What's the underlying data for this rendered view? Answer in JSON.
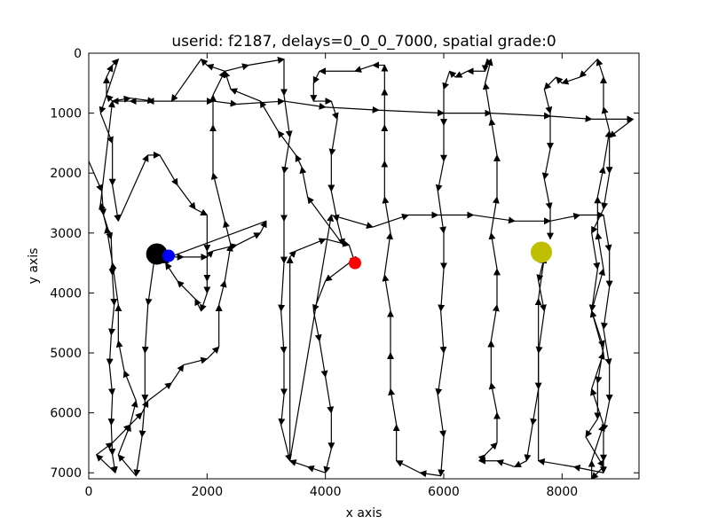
{
  "chart_data": {
    "type": "line",
    "title": "userid: f2187, delays=0_0_0_7000, spatial grade:0",
    "xlabel": "x axis",
    "ylabel": "y axis",
    "xlim": [
      0,
      9300
    ],
    "ylim": [
      7100,
      0
    ],
    "y_inverted": true,
    "grid": false,
    "legend": "none",
    "xticks": [
      0,
      2000,
      4000,
      6000,
      8000
    ],
    "yticks": [
      0,
      1000,
      2000,
      3000,
      4000,
      5000,
      6000,
      7000
    ],
    "series": [
      {
        "color": "#000000",
        "marker": "arrow",
        "points": [
          [
            0,
            1800
          ],
          [
            220,
            2300
          ],
          [
            250,
            2700
          ],
          [
            380,
            3100
          ],
          [
            400,
            3700
          ],
          [
            430,
            4200
          ],
          [
            380,
            4700
          ],
          [
            350,
            5200
          ],
          [
            400,
            5700
          ],
          [
            380,
            6200
          ],
          [
            400,
            6700
          ],
          [
            450,
            7000
          ],
          [
            130,
            6700
          ],
          [
            400,
            6500
          ],
          [
            700,
            6200
          ],
          [
            900,
            6000
          ],
          [
            1000,
            5800
          ],
          [
            1400,
            5500
          ],
          [
            1600,
            5200
          ],
          [
            2000,
            5100
          ],
          [
            2200,
            4900
          ],
          [
            2200,
            4200
          ],
          [
            2300,
            3800
          ],
          [
            2400,
            3200
          ],
          [
            2300,
            2800
          ],
          [
            2100,
            2000
          ],
          [
            2100,
            1200
          ],
          [
            2100,
            700
          ],
          [
            2300,
            300
          ],
          [
            2700,
            200
          ],
          [
            3300,
            100
          ],
          [
            3300,
            700
          ],
          [
            3400,
            1400
          ],
          [
            3300,
            2000
          ],
          [
            3300,
            2800
          ],
          [
            3300,
            3500
          ],
          [
            3250,
            4300
          ],
          [
            3300,
            5000
          ],
          [
            3300,
            5700
          ],
          [
            3250,
            6200
          ],
          [
            3400,
            6800
          ],
          [
            3400,
            3400
          ],
          [
            3500,
            3300
          ],
          [
            4000,
            3100
          ],
          [
            4400,
            3200
          ],
          [
            4500,
            3500
          ],
          [
            4400,
            3500
          ],
          [
            4000,
            3800
          ],
          [
            3800,
            4300
          ],
          [
            3900,
            4800
          ],
          [
            4000,
            5400
          ],
          [
            4100,
            6000
          ],
          [
            4100,
            6600
          ],
          [
            4000,
            7000
          ],
          [
            3700,
            6900
          ],
          [
            3400,
            6800
          ],
          [
            4100,
            2700
          ],
          [
            4800,
            2900
          ],
          [
            5400,
            2700
          ],
          [
            5900,
            2700
          ],
          [
            6500,
            2700
          ],
          [
            7200,
            2800
          ],
          [
            7800,
            2800
          ],
          [
            8300,
            2700
          ],
          [
            8700,
            2700
          ],
          [
            8800,
            3300
          ],
          [
            8800,
            3900
          ],
          [
            8700,
            4600
          ],
          [
            8800,
            5200
          ],
          [
            8800,
            5800
          ],
          [
            8700,
            6300
          ],
          [
            8700,
            6800
          ],
          [
            8700,
            7000
          ],
          [
            8200,
            6900
          ],
          [
            7600,
            6800
          ],
          [
            7600,
            4100
          ],
          [
            7700,
            3400
          ],
          [
            7600,
            3800
          ],
          [
            7700,
            4300
          ],
          [
            7600,
            5000
          ],
          [
            7600,
            5600
          ],
          [
            7500,
            6200
          ],
          [
            7400,
            6800
          ],
          [
            7200,
            6900
          ],
          [
            6900,
            6800
          ],
          [
            6600,
            6800
          ],
          [
            6700,
            6700
          ],
          [
            6900,
            6500
          ],
          [
            6900,
            6000
          ],
          [
            6800,
            5500
          ],
          [
            6800,
            4800
          ],
          [
            6900,
            4200
          ],
          [
            6900,
            3600
          ],
          [
            6800,
            3000
          ],
          [
            6900,
            2400
          ],
          [
            6900,
            1700
          ],
          [
            6800,
            1100
          ],
          [
            6700,
            500
          ],
          [
            6800,
            100
          ],
          [
            6700,
            200
          ],
          [
            6700,
            300
          ],
          [
            6400,
            300
          ],
          [
            6200,
            400
          ],
          [
            6100,
            300
          ],
          [
            6000,
            600
          ],
          [
            6000,
            1200
          ],
          [
            6000,
            1800
          ],
          [
            5900,
            2300
          ],
          [
            6000,
            3000
          ],
          [
            6000,
            3600
          ],
          [
            5950,
            4300
          ],
          [
            6000,
            5000
          ],
          [
            5900,
            5700
          ],
          [
            6000,
            6400
          ],
          [
            5950,
            7050
          ],
          [
            5600,
            7000
          ],
          [
            5200,
            6800
          ],
          [
            5200,
            6200
          ],
          [
            5100,
            5600
          ],
          [
            5100,
            5000
          ],
          [
            5100,
            4300
          ],
          [
            5000,
            3700
          ],
          [
            5100,
            3000
          ],
          [
            5000,
            2400
          ],
          [
            5000,
            1800
          ],
          [
            5000,
            1200
          ],
          [
            5000,
            600
          ],
          [
            5000,
            200
          ],
          [
            4800,
            200
          ],
          [
            4500,
            300
          ],
          [
            3900,
            300
          ],
          [
            3800,
            500
          ],
          [
            3800,
            800
          ],
          [
            4100,
            800
          ],
          [
            4200,
            1100
          ],
          [
            4100,
            1700
          ],
          [
            4100,
            2300
          ],
          [
            4200,
            2800
          ],
          [
            4300,
            3200
          ],
          [
            3700,
            2400
          ],
          [
            3600,
            1900
          ],
          [
            3500,
            1700
          ],
          [
            3200,
            1300
          ],
          [
            2900,
            800
          ],
          [
            2400,
            600
          ],
          [
            2300,
            300
          ],
          [
            2000,
            200
          ],
          [
            1900,
            100
          ],
          [
            1400,
            800
          ],
          [
            1000,
            800
          ],
          [
            700,
            800
          ],
          [
            400,
            800
          ],
          [
            300,
            700
          ],
          [
            300,
            400
          ],
          [
            400,
            200
          ],
          [
            500,
            100
          ],
          [
            200,
            1000
          ],
          [
            400,
            1500
          ],
          [
            400,
            2200
          ],
          [
            500,
            2800
          ],
          [
            1000,
            1700
          ],
          [
            1200,
            1700
          ],
          [
            1500,
            2200
          ],
          [
            1800,
            2600
          ],
          [
            2000,
            2700
          ],
          [
            2000,
            3300
          ],
          [
            2000,
            3800
          ],
          [
            2000,
            4000
          ],
          [
            1900,
            4300
          ],
          [
            1800,
            4100
          ],
          [
            1500,
            3800
          ],
          [
            1300,
            3500
          ],
          [
            1300,
            3400
          ],
          [
            1600,
            3400
          ],
          [
            2000,
            3400
          ],
          [
            2100,
            3300
          ],
          [
            2500,
            3200
          ],
          [
            2900,
            3000
          ],
          [
            3000,
            2800
          ],
          [
            1100,
            3500
          ],
          [
            1000,
            4200
          ],
          [
            950,
            5000
          ],
          [
            950,
            5800
          ],
          [
            900,
            6400
          ],
          [
            800,
            7050
          ],
          [
            500,
            6700
          ],
          [
            700,
            6200
          ],
          [
            800,
            5800
          ],
          [
            600,
            5300
          ],
          [
            500,
            4800
          ],
          [
            500,
            4200
          ],
          [
            400,
            3500
          ],
          [
            300,
            2900
          ],
          [
            200,
            2500
          ],
          [
            400,
            800
          ],
          [
            700,
            750
          ],
          [
            1100,
            800
          ],
          [
            2100,
            800
          ],
          [
            2500,
            850
          ],
          [
            3300,
            800
          ],
          [
            4000,
            900
          ],
          [
            4900,
            950
          ],
          [
            6000,
            1000
          ],
          [
            6800,
            1000
          ],
          [
            7800,
            1050
          ],
          [
            8500,
            1100
          ],
          [
            9200,
            1100
          ],
          [
            8800,
            1400
          ],
          [
            8800,
            2000
          ],
          [
            8700,
            2600
          ],
          [
            8500,
            3000
          ],
          [
            8600,
            3600
          ],
          [
            8500,
            4300
          ],
          [
            8700,
            4900
          ],
          [
            8600,
            5500
          ],
          [
            8600,
            6100
          ],
          [
            8400,
            6400
          ],
          [
            8700,
            6900
          ],
          [
            8500,
            7100
          ],
          [
            8500,
            6800
          ],
          [
            8700,
            6200
          ],
          [
            8500,
            5600
          ],
          [
            8700,
            5000
          ],
          [
            8500,
            4300
          ],
          [
            8700,
            3600
          ],
          [
            8600,
            3000
          ],
          [
            8600,
            2400
          ],
          [
            8700,
            1900
          ],
          [
            8800,
            1300
          ],
          [
            8700,
            900
          ],
          [
            8700,
            400
          ],
          [
            8600,
            100
          ],
          [
            8300,
            400
          ],
          [
            8000,
            500
          ],
          [
            7900,
            400
          ],
          [
            7700,
            600
          ],
          [
            7800,
            1000
          ],
          [
            7800,
            1600
          ],
          [
            7700,
            2100
          ],
          [
            7800,
            2600
          ],
          [
            7800,
            3100
          ]
        ]
      },
      {
        "color": "#000000",
        "marker": "circle",
        "points": [
          [
            1150,
            3350
          ]
        ],
        "size": 12
      },
      {
        "color": "#0000ff",
        "marker": "circle",
        "points": [
          [
            1350,
            3380
          ],
          [
            7650,
            3400
          ]
        ],
        "size": 7
      },
      {
        "color": "#ff0000",
        "marker": "circle",
        "points": [
          [
            4500,
            3500
          ]
        ],
        "size": 7
      },
      {
        "color": "#bfbf00",
        "marker": "circle",
        "points": [
          [
            7650,
            3320
          ]
        ],
        "size": 12
      }
    ]
  }
}
